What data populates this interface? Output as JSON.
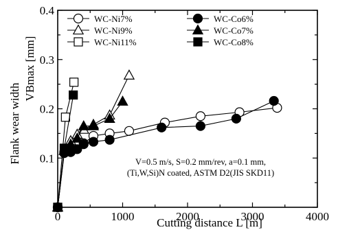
{
  "chart_data": {
    "type": "line",
    "xlabel": "Cutting distance  L  [m]",
    "ylabel_line1": "Flank wear width",
    "ylabel_line2": "VBmax [mm]",
    "xlim": [
      0,
      4000
    ],
    "ylim": [
      0,
      0.4
    ],
    "xticks": [
      0,
      1000,
      2000,
      3000,
      4000
    ],
    "yticks": [
      0.1,
      0.2,
      0.3,
      0.4
    ],
    "yticks_display": [
      "0.1",
      "0.2",
      "0.3",
      "0.4"
    ],
    "legend_position": "top",
    "annotation_line1": "V=0.5 m/s, S=0.2 mm/rev, a=0.1 mm,",
    "annotation_line2": "(Ti,W,Si)N coated, ASTM D2(JIS SKD11)",
    "series": [
      {
        "name": "WC-Ni7%",
        "marker": "circle",
        "fill": "open",
        "x": [
          0,
          100,
          200,
          300,
          400,
          550,
          800,
          1100,
          1650,
          2200,
          2800,
          3380
        ],
        "y": [
          0,
          0.112,
          0.118,
          0.124,
          0.13,
          0.145,
          0.15,
          0.155,
          0.172,
          0.185,
          0.193,
          0.202
        ]
      },
      {
        "name": "WC-Ni9%",
        "marker": "triangle",
        "fill": "open",
        "x": [
          0,
          100,
          200,
          300,
          400,
          550,
          800,
          1100
        ],
        "y": [
          0,
          0.115,
          0.135,
          0.148,
          0.158,
          0.168,
          0.187,
          0.268
        ]
      },
      {
        "name": "WC-Ni11%",
        "marker": "square",
        "fill": "open",
        "x": [
          0,
          120,
          250
        ],
        "y": [
          0,
          0.183,
          0.254
        ]
      },
      {
        "name": "WC-Co6%",
        "marker": "circle",
        "fill": "filled",
        "x": [
          0,
          100,
          200,
          300,
          400,
          550,
          800,
          1600,
          2200,
          2750,
          3330
        ],
        "y": [
          0,
          0.11,
          0.112,
          0.118,
          0.128,
          0.133,
          0.137,
          0.162,
          0.165,
          0.18,
          0.216
        ]
      },
      {
        "name": "WC-Co7%",
        "marker": "triangle",
        "fill": "filled",
        "x": [
          0,
          100,
          200,
          300,
          400,
          550,
          800,
          1000
        ],
        "y": [
          0,
          0.115,
          0.128,
          0.14,
          0.165,
          0.165,
          0.18,
          0.215
        ]
      },
      {
        "name": "WC-Co8%",
        "marker": "square",
        "fill": "filled",
        "x": [
          0,
          100,
          240
        ],
        "y": [
          0,
          0.12,
          0.228
        ]
      }
    ]
  }
}
